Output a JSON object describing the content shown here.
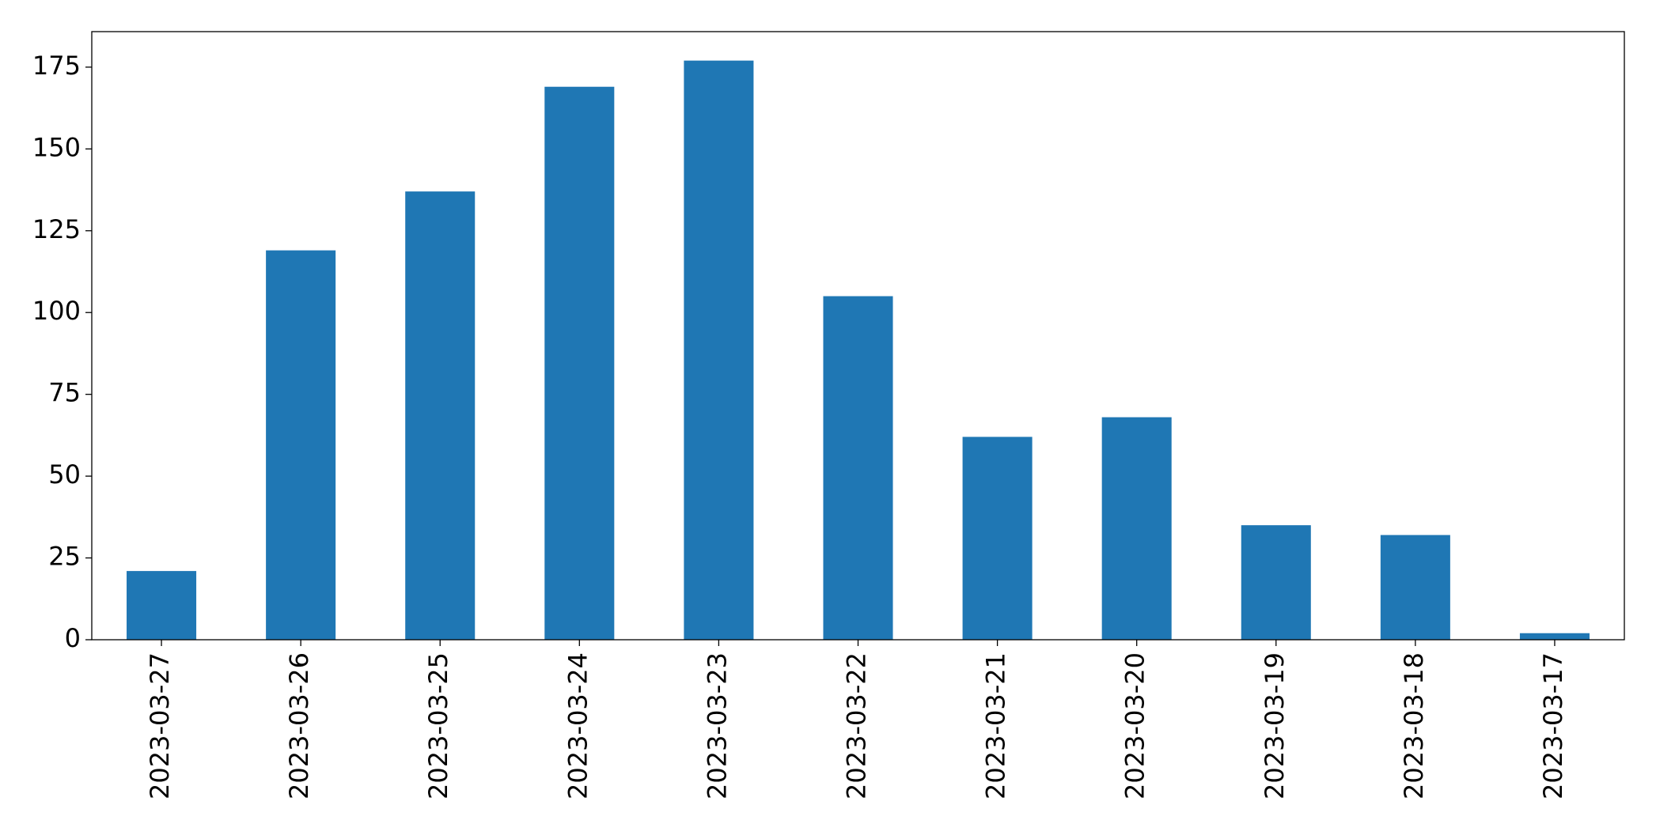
{
  "chart_data": {
    "type": "bar",
    "categories": [
      "2023-03-27",
      "2023-03-26",
      "2023-03-25",
      "2023-03-24",
      "2023-03-23",
      "2023-03-22",
      "2023-03-21",
      "2023-03-20",
      "2023-03-19",
      "2023-03-18",
      "2023-03-17"
    ],
    "values": [
      21,
      119,
      137,
      169,
      177,
      105,
      62,
      68,
      35,
      32,
      2
    ],
    "color": "#1f77b4",
    "ylim": [
      0,
      185.85
    ],
    "yticks": [
      0,
      25,
      50,
      75,
      100,
      125,
      150,
      175
    ],
    "grid": false
  }
}
